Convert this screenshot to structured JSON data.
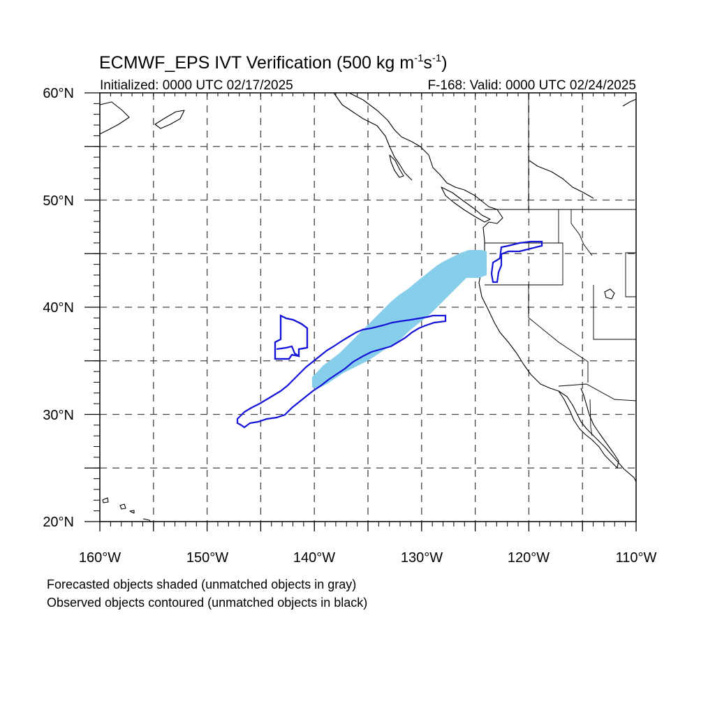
{
  "title": {
    "main_prefix": "ECMWF_EPS IVT Verification (500 kg m",
    "sup1": "-1",
    "mid": "s",
    "sup2": "-1",
    "suffix": ")"
  },
  "subtitle": {
    "initialized": "Initialized: 0000 UTC 02/17/2025",
    "valid": "F-168: Valid: 0000 UTC 02/24/2025"
  },
  "axes": {
    "lat_labels": [
      "60°N",
      "50°N",
      "40°N",
      "30°N",
      "20°N"
    ],
    "lon_labels": [
      "160°W",
      "150°W",
      "140°W",
      "130°W",
      "120°W",
      "110°W"
    ],
    "lat_range": [
      20,
      60
    ],
    "lon_range": [
      -160,
      -110
    ],
    "grid_spacing_deg": 5,
    "grid": "dashed"
  },
  "legend": {
    "line1": "Forecasted objects shaded (unmatched objects in gray)",
    "line2": "Observed objects contoured (unmatched objects in black)"
  },
  "colors": {
    "forecast_fill": "#87ceeb",
    "observed_contour": "#1414d8",
    "coastline": "#000000"
  }
}
